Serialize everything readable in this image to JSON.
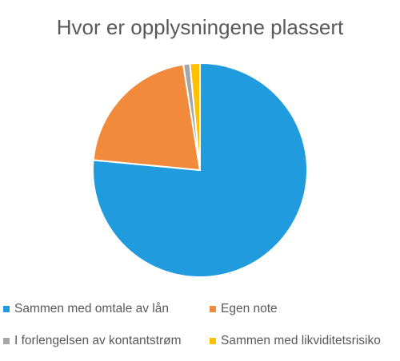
{
  "chart_data": {
    "type": "pie",
    "title": "Hvor er opplysningene plassert",
    "series": [
      {
        "name": "Sammen med omtale av lån",
        "value": 76.5,
        "color": "#1F9BDE"
      },
      {
        "name": "Egen note",
        "value": 21.0,
        "color": "#F28A3C"
      },
      {
        "name": "I forlengelsen av kontantstrøm",
        "value": 1.0,
        "color": "#A5A5A5"
      },
      {
        "name": "Sammen med likviditetsrisiko",
        "value": 1.5,
        "color": "#FFC000"
      }
    ],
    "legend_position": "bottom",
    "start_angle": "top",
    "direction": "clockwise"
  }
}
